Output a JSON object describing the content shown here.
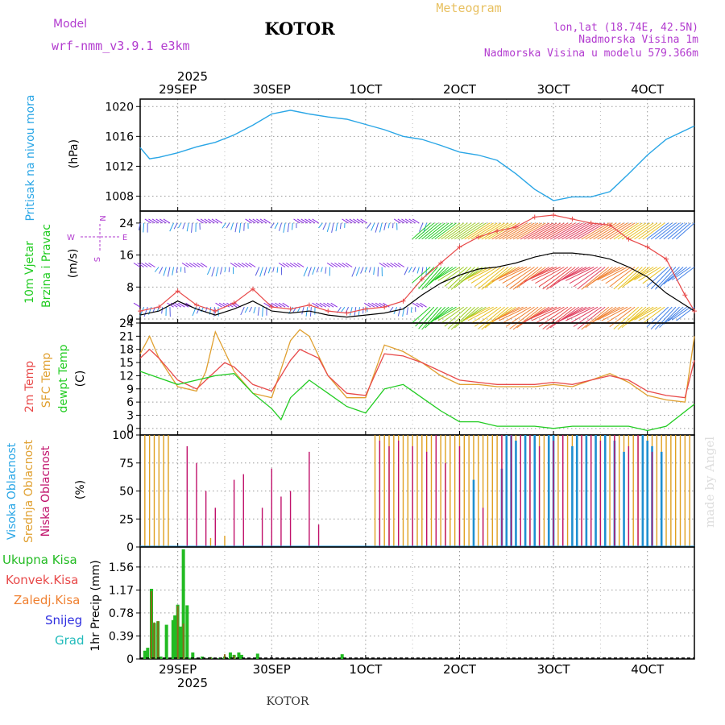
{
  "header": {
    "model_label": "Model",
    "model_name": "wrf-nmm_v3.9.1 e3km",
    "station": "KOTOR",
    "meteogram_label": "Meteogram",
    "lonlat": "lon,lat (18.74E, 42.5N)",
    "elevation": "Nadmorska Visina 1m",
    "model_elevation": "Nadmorska Visina u modelu 579.366m",
    "year": "2025",
    "watermark": "made by Angel",
    "footer_station": "KOTOR"
  },
  "colors": {
    "purple": "#b23bcf",
    "gold": "#e8c060",
    "pressure": "#2aa6e6",
    "temp2m": "#e84a4a",
    "sfc": "#e0a030",
    "dewpt": "#22cc22",
    "high_cloud": "#1f8fd0",
    "mid_cloud": "#e0a020",
    "low_cloud": "#c0106a",
    "total_precip": "#22bb22",
    "convective": "#e84a4a",
    "freezing": "#f08030",
    "snow": "#3030e0",
    "graupel": "#22bbbb"
  },
  "chart_data": [
    {
      "type": "line",
      "id": "pressure",
      "ylabel_main": "Pritisak na nivou mora",
      "ylabel_unit": "(hPa)",
      "x_axis": {
        "start_day": 28.6,
        "end_day": 34.5,
        "tick_days": [
          29,
          30,
          31,
          32,
          33,
          34
        ],
        "tick_labels_top": [
          "29SEP",
          "30SEP",
          "1OCT",
          "2OCT",
          "3OCT",
          "4OCT"
        ],
        "tick_labels_bottom": [
          "29SEP",
          "30SEP",
          "1OCT",
          "2OCT",
          "3OCT",
          "4OCT"
        ]
      },
      "ylim": [
        1006,
        1021
      ],
      "yticks": [
        1008,
        1012,
        1016,
        1020
      ],
      "series": [
        {
          "name": "MSLP",
          "x": [
            28.6,
            28.7,
            28.8,
            29.0,
            29.2,
            29.4,
            29.6,
            29.8,
            30.0,
            30.2,
            30.4,
            30.6,
            30.8,
            31.0,
            31.2,
            31.4,
            31.6,
            31.8,
            32.0,
            32.2,
            32.4,
            32.6,
            32.8,
            33.0,
            33.2,
            33.4,
            33.6,
            33.8,
            34.0,
            34.2,
            34.5
          ],
          "values": [
            1014.5,
            1013.0,
            1013.2,
            1013.8,
            1014.6,
            1015.2,
            1016.2,
            1017.5,
            1019.0,
            1019.5,
            1019.0,
            1018.6,
            1018.3,
            1017.6,
            1016.9,
            1016.0,
            1015.6,
            1014.8,
            1013.9,
            1013.5,
            1012.8,
            1011.0,
            1008.9,
            1007.4,
            1007.9,
            1007.9,
            1008.6,
            1011.0,
            1013.5,
            1015.6,
            1017.4
          ]
        }
      ]
    },
    {
      "type": "line",
      "id": "wind",
      "ylabel_main": "10m Vjetar",
      "ylabel_sub": "Brzina i Pravac",
      "ylabel_unit": "(m/s)",
      "compass_labels": [
        "N",
        "W",
        "E",
        "S"
      ],
      "ylim": [
        -1,
        27
      ],
      "yticks": [
        0,
        8,
        16,
        24
      ],
      "barb_levels": [
        24,
        13,
        3
      ],
      "series": [
        {
          "name": "Wind speed",
          "x": [
            28.6,
            28.8,
            29.0,
            29.2,
            29.4,
            29.6,
            29.8,
            30.0,
            30.2,
            30.4,
            30.6,
            30.8,
            31.0,
            31.2,
            31.4,
            31.6,
            31.8,
            32.0,
            32.2,
            32.4,
            32.6,
            32.8,
            33.0,
            33.2,
            33.4,
            33.6,
            33.8,
            34.0,
            34.2,
            34.5
          ],
          "values": [
            1.0,
            2.0,
            4.5,
            2.5,
            1.0,
            2.5,
            4.5,
            2.0,
            1.5,
            2.0,
            1.0,
            0.5,
            1.0,
            1.5,
            2.5,
            6.0,
            9.0,
            11.0,
            12.5,
            13.0,
            14.0,
            15.5,
            16.5,
            16.5,
            16.0,
            15.0,
            13.0,
            10.5,
            6.5,
            2.0
          ]
        },
        {
          "name": "Wind gust",
          "x": [
            28.6,
            28.8,
            29.0,
            29.2,
            29.4,
            29.6,
            29.8,
            30.0,
            30.2,
            30.4,
            30.6,
            30.8,
            31.0,
            31.2,
            31.4,
            31.6,
            31.8,
            32.0,
            32.2,
            32.4,
            32.6,
            32.8,
            33.0,
            33.2,
            33.4,
            33.6,
            33.8,
            34.0,
            34.2,
            34.4,
            34.5
          ],
          "values": [
            2.0,
            3.0,
            7.0,
            3.5,
            2.0,
            4.0,
            7.5,
            3.0,
            2.5,
            3.5,
            2.0,
            1.5,
            2.5,
            3.0,
            4.5,
            10.0,
            14.0,
            18.0,
            20.5,
            22.0,
            23.0,
            25.5,
            26.0,
            25.0,
            24.0,
            23.5,
            20.0,
            18.0,
            15.0,
            6.0,
            2.0
          ]
        }
      ]
    },
    {
      "type": "line",
      "id": "temperature",
      "ylabel_lines": [
        "2m Temp",
        "SFC Temp",
        "dewpt Temp"
      ],
      "ylabel_unit": "(C)",
      "ylim": [
        -1.5,
        24
      ],
      "yticks": [
        0,
        3,
        6,
        9,
        12,
        15,
        18,
        21,
        24
      ],
      "series": [
        {
          "name": "2m Temp",
          "x": [
            28.6,
            28.7,
            28.8,
            29.0,
            29.2,
            29.3,
            29.5,
            29.6,
            29.8,
            30.0,
            30.2,
            30.3,
            30.5,
            30.6,
            30.8,
            31.0,
            31.2,
            31.4,
            31.6,
            31.8,
            32.0,
            32.2,
            32.4,
            32.6,
            32.8,
            33.0,
            33.2,
            33.4,
            33.6,
            33.8,
            34.0,
            34.2,
            34.4,
            34.5
          ],
          "values": [
            16.0,
            18.0,
            16.0,
            11.0,
            9.0,
            11.0,
            15.0,
            14.0,
            10.0,
            8.5,
            15.5,
            18.0,
            16.0,
            12.0,
            8.0,
            7.5,
            17.0,
            16.5,
            15.0,
            13.0,
            11.0,
            10.5,
            10.0,
            10.0,
            10.0,
            10.5,
            10.0,
            11.0,
            12.0,
            11.0,
            8.5,
            7.5,
            7.0,
            15.5
          ]
        },
        {
          "name": "SFC Temp",
          "x": [
            28.6,
            28.7,
            28.8,
            29.0,
            29.2,
            29.3,
            29.4,
            29.6,
            29.8,
            30.0,
            30.2,
            30.3,
            30.4,
            30.6,
            30.8,
            31.0,
            31.2,
            31.4,
            31.6,
            31.8,
            32.0,
            32.2,
            32.4,
            32.6,
            32.8,
            33.0,
            33.2,
            33.4,
            33.6,
            33.8,
            34.0,
            34.2,
            34.4,
            34.5
          ],
          "values": [
            17.0,
            21.0,
            16.0,
            9.5,
            8.5,
            13.0,
            22.0,
            13.0,
            8.0,
            7.0,
            20.0,
            22.5,
            21.0,
            12.0,
            7.0,
            7.0,
            19.0,
            17.5,
            15.0,
            12.0,
            10.0,
            10.0,
            9.5,
            9.5,
            9.5,
            10.0,
            9.5,
            11.0,
            12.5,
            10.5,
            7.5,
            6.5,
            6.0,
            21.0
          ]
        },
        {
          "name": "dewpt Temp",
          "x": [
            28.6,
            28.8,
            29.0,
            29.2,
            29.4,
            29.6,
            29.8,
            30.0,
            30.1,
            30.2,
            30.4,
            30.6,
            30.8,
            31.0,
            31.2,
            31.4,
            31.6,
            31.8,
            32.0,
            32.2,
            32.4,
            32.6,
            32.8,
            33.0,
            33.2,
            33.4,
            33.6,
            33.8,
            34.0,
            34.2,
            34.5
          ],
          "values": [
            13.0,
            11.5,
            10.0,
            11.0,
            12.0,
            12.5,
            8.0,
            4.5,
            2.0,
            7.0,
            11.0,
            8.0,
            5.0,
            3.5,
            9.0,
            10.0,
            7.0,
            4.0,
            1.5,
            1.5,
            0.5,
            0.5,
            0.5,
            0.0,
            0.5,
            0.5,
            0.5,
            0.5,
            -0.5,
            0.5,
            5.5
          ]
        }
      ]
    },
    {
      "type": "bar",
      "id": "clouds",
      "ylabel_lines": [
        "Visoka Oblacnost",
        "Srednja Oblacnost",
        "Niska Oblacnost"
      ],
      "ylabel_unit": "(%)",
      "ylim": [
        0,
        100
      ],
      "yticks": [
        0,
        25,
        50,
        75,
        100
      ],
      "series": [
        {
          "name": "Srednja Oblacnost",
          "x": [
            28.65,
            28.7,
            28.75,
            28.8,
            28.85,
            28.9,
            29.35,
            29.5,
            31.1,
            31.15,
            31.2,
            31.25,
            31.3,
            31.35,
            31.4,
            31.45,
            31.5,
            31.55,
            31.6,
            31.65,
            31.7,
            31.75,
            31.8,
            31.85,
            31.9,
            31.95,
            32.0,
            32.05,
            32.1,
            32.15,
            32.2,
            32.25,
            32.3,
            32.35,
            32.4,
            32.45,
            32.5,
            32.55,
            32.6,
            32.65,
            32.7,
            32.75,
            32.8,
            32.85,
            32.9,
            32.95,
            33.0,
            33.05,
            33.1,
            33.15,
            33.2,
            33.25,
            33.3,
            33.35,
            33.4,
            33.45,
            33.5,
            33.55,
            33.6,
            33.65,
            33.7,
            33.75,
            33.8,
            33.85,
            33.9,
            33.95,
            34.0,
            34.05,
            34.1,
            34.15,
            34.2,
            34.25,
            34.3,
            34.35,
            34.4,
            34.45
          ],
          "values": [
            100,
            100,
            100,
            100,
            100,
            100,
            8,
            10,
            100,
            100,
            100,
            100,
            100,
            100,
            100,
            100,
            100,
            100,
            100,
            100,
            100,
            100,
            100,
            100,
            100,
            100,
            100,
            100,
            100,
            100,
            100,
            100,
            100,
            100,
            100,
            100,
            100,
            100,
            100,
            100,
            100,
            100,
            100,
            100,
            100,
            100,
            100,
            100,
            100,
            100,
            100,
            100,
            100,
            100,
            100,
            100,
            100,
            100,
            100,
            100,
            100,
            100,
            100,
            100,
            100,
            100,
            100,
            100,
            100,
            100,
            100,
            100,
            100,
            100,
            100,
            100
          ]
        },
        {
          "name": "Visoka Oblacnost",
          "x": [
            32.15,
            32.45,
            32.5,
            32.55,
            32.6,
            32.7,
            32.8,
            32.95,
            33.0,
            33.2,
            33.25,
            33.35,
            33.45,
            33.55,
            33.65,
            33.75,
            33.95,
            34.0,
            34.05,
            34.15
          ],
          "values": [
            60,
            70,
            100,
            100,
            95,
            100,
            100,
            100,
            100,
            90,
            100,
            100,
            100,
            100,
            95,
            85,
            100,
            95,
            90,
            85
          ]
        },
        {
          "name": "Niska Oblacnost",
          "x": [
            29.1,
            29.2,
            29.3,
            29.4,
            29.6,
            29.7,
            29.9,
            30.0,
            30.1,
            30.2,
            30.4,
            30.5,
            31.15,
            31.25,
            31.35,
            31.5,
            31.65,
            31.75,
            31.85,
            32.0,
            32.25,
            32.45,
            32.55,
            32.65,
            32.75,
            32.85,
            33.0,
            33.1,
            33.3,
            33.4,
            33.5,
            33.65,
            33.8,
            33.9,
            34.05
          ],
          "values": [
            90,
            75,
            50,
            35,
            60,
            65,
            35,
            70,
            45,
            50,
            85,
            20,
            95,
            90,
            95,
            90,
            85,
            100,
            75,
            90,
            35,
            100,
            100,
            100,
            100,
            90,
            95,
            100,
            100,
            100,
            95,
            100,
            90,
            100,
            85
          ]
        }
      ]
    },
    {
      "type": "bar",
      "id": "precip",
      "ylabel_main": "1hr Precip",
      "ylabel_unit": "(mm)",
      "legend": [
        "Ukupna Kisa",
        "Konvek.Kisa",
        "Zaledj.Kisa",
        "Snijeg",
        "Grad"
      ],
      "ylim": [
        0,
        1.9
      ],
      "yticks": [
        0,
        0.39,
        0.78,
        1.17,
        1.56
      ],
      "ytick_labels": [
        "0",
        "0.39",
        "0.78",
        "1.17",
        "1.56"
      ],
      "series": [
        {
          "name": "Ukupna Kisa",
          "x": [
            28.65,
            28.68,
            28.72,
            28.75,
            28.79,
            28.82,
            28.88,
            28.95,
            28.97,
            29.0,
            29.03,
            29.06,
            29.1,
            29.13,
            29.16,
            29.26,
            29.35,
            29.45,
            29.5,
            29.56,
            29.6,
            29.65,
            29.68,
            29.85,
            30.75
          ],
          "values": [
            0.14,
            0.19,
            1.19,
            0.61,
            0.64,
            0.04,
            0.58,
            0.66,
            0.74,
            0.92,
            0.55,
            1.86,
            0.91,
            0.02,
            0.11,
            0.04,
            0.03,
            0.02,
            0.04,
            0.11,
            0.07,
            0.11,
            0.07,
            0.09,
            0.08
          ]
        },
        {
          "name": "Konvek.Kisa",
          "x": [
            28.72,
            28.75,
            28.79,
            29.0,
            29.06,
            29.35,
            29.5,
            29.6
          ],
          "values": [
            1.15,
            0.62,
            0.64,
            0.9,
            0.6,
            0.03,
            0.08,
            0.06
          ]
        }
      ]
    }
  ]
}
